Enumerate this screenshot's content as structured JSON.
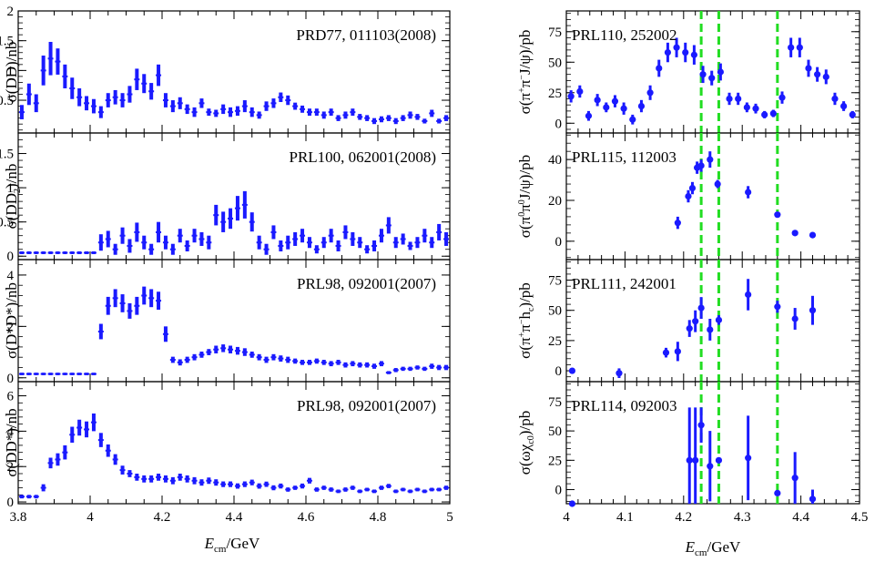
{
  "figure": {
    "left_xlabel": "E",
    "left_xlabel_sub": "cm",
    "left_xlabel_unit": "/GeV",
    "right_xlabel": "E",
    "right_xlabel_sub": "cm",
    "right_xlabel_unit": "/GeV",
    "marker_color": "#1a1aff",
    "vline_color": "#22dd22"
  },
  "chart_data": [
    {
      "type": "scatter",
      "column": "left",
      "row": 0,
      "annotation": "PRD77, 011103(2008)",
      "ylabel": "σ(DD)/nb",
      "xlim": [
        3.8,
        5.0
      ],
      "ylim": [
        -0.05,
        2.0
      ],
      "xticks": [
        3.8,
        4.0,
        4.2,
        4.4,
        4.6,
        4.8,
        5.0
      ],
      "yticks": [
        0.5,
        1,
        1.5,
        2
      ],
      "ytick_labels": [
        "0.5",
        "1",
        "1.5",
        "2"
      ],
      "show_xtick_labels": false,
      "error_style": "dense",
      "x": [
        3.81,
        3.83,
        3.85,
        3.87,
        3.89,
        3.91,
        3.93,
        3.95,
        3.97,
        3.99,
        4.01,
        4.03,
        4.05,
        4.07,
        4.09,
        4.11,
        4.13,
        4.15,
        4.17,
        4.19,
        4.21,
        4.23,
        4.25,
        4.27,
        4.29,
        4.31,
        4.33,
        4.35,
        4.37,
        4.39,
        4.41,
        4.43,
        4.45,
        4.47,
        4.49,
        4.51,
        4.53,
        4.55,
        4.57,
        4.59,
        4.61,
        4.63,
        4.65,
        4.67,
        4.69,
        4.71,
        4.73,
        4.75,
        4.77,
        4.79,
        4.81,
        4.83,
        4.85,
        4.87,
        4.89,
        4.91,
        4.93,
        4.95,
        4.97,
        4.99
      ],
      "y": [
        0.3,
        0.6,
        0.45,
        1.0,
        1.2,
        1.15,
        0.9,
        0.7,
        0.55,
        0.45,
        0.4,
        0.3,
        0.5,
        0.55,
        0.5,
        0.6,
        0.85,
        0.78,
        0.65,
        0.92,
        0.5,
        0.4,
        0.45,
        0.35,
        0.3,
        0.45,
        0.3,
        0.28,
        0.35,
        0.3,
        0.32,
        0.4,
        0.3,
        0.25,
        0.4,
        0.45,
        0.55,
        0.5,
        0.4,
        0.35,
        0.3,
        0.3,
        0.25,
        0.3,
        0.2,
        0.25,
        0.3,
        0.22,
        0.2,
        0.15,
        0.18,
        0.2,
        0.15,
        0.2,
        0.25,
        0.22,
        0.15,
        0.28,
        0.15,
        0.2
      ],
      "err": [
        0.12,
        0.18,
        0.15,
        0.25,
        0.28,
        0.22,
        0.2,
        0.18,
        0.15,
        0.12,
        0.12,
        0.1,
        0.12,
        0.12,
        0.12,
        0.14,
        0.18,
        0.16,
        0.14,
        0.18,
        0.12,
        0.1,
        0.1,
        0.08,
        0.08,
        0.08,
        0.06,
        0.06,
        0.08,
        0.08,
        0.08,
        0.1,
        0.08,
        0.06,
        0.08,
        0.08,
        0.08,
        0.08,
        0.06,
        0.06,
        0.06,
        0.06,
        0.06,
        0.06,
        0.05,
        0.06,
        0.06,
        0.05,
        0.05,
        0.05,
        0.05,
        0.05,
        0.05,
        0.05,
        0.06,
        0.05,
        0.04,
        0.06,
        0.04,
        0.05
      ]
    },
    {
      "type": "scatter",
      "column": "left",
      "row": 1,
      "annotation": "PRL100, 062001(2008)",
      "ylabel": "σ(DD₂)/nb",
      "xlim": [
        3.8,
        5.0
      ],
      "ylim": [
        -0.05,
        1.8
      ],
      "xticks": [
        3.8,
        4.0,
        4.2,
        4.4,
        4.6,
        4.8,
        5.0
      ],
      "yticks": [
        0,
        0.5,
        1,
        1.5
      ],
      "ytick_labels": [
        "0",
        "0.5",
        "1",
        "1.5"
      ],
      "show_xtick_labels": false,
      "error_style": "dense",
      "x": [
        3.81,
        3.83,
        3.85,
        3.87,
        3.89,
        3.91,
        3.93,
        3.95,
        3.97,
        3.99,
        4.01,
        4.03,
        4.05,
        4.07,
        4.09,
        4.11,
        4.13,
        4.15,
        4.17,
        4.19,
        4.21,
        4.23,
        4.25,
        4.27,
        4.29,
        4.31,
        4.33,
        4.35,
        4.37,
        4.39,
        4.41,
        4.43,
        4.45,
        4.47,
        4.49,
        4.51,
        4.53,
        4.55,
        4.57,
        4.59,
        4.61,
        4.63,
        4.65,
        4.67,
        4.69,
        4.71,
        4.73,
        4.75,
        4.77,
        4.79,
        4.81,
        4.83,
        4.85,
        4.87,
        4.89,
        4.91,
        4.93,
        4.95,
        4.97,
        4.99
      ],
      "y": [
        0.05,
        0.05,
        0.05,
        0.05,
        0.05,
        0.05,
        0.05,
        0.05,
        0.05,
        0.05,
        0.05,
        0.2,
        0.25,
        0.1,
        0.3,
        0.15,
        0.35,
        0.2,
        0.1,
        0.35,
        0.2,
        0.1,
        0.3,
        0.15,
        0.3,
        0.25,
        0.2,
        0.6,
        0.5,
        0.55,
        0.7,
        0.75,
        0.5,
        0.2,
        0.1,
        0.35,
        0.15,
        0.2,
        0.25,
        0.3,
        0.2,
        0.1,
        0.2,
        0.3,
        0.15,
        0.35,
        0.25,
        0.2,
        0.1,
        0.15,
        0.3,
        0.45,
        0.2,
        0.25,
        0.15,
        0.2,
        0.3,
        0.2,
        0.35,
        0.25
      ],
      "err": [
        0.02,
        0.02,
        0.02,
        0.02,
        0.02,
        0.02,
        0.02,
        0.02,
        0.02,
        0.02,
        0.02,
        0.12,
        0.12,
        0.08,
        0.12,
        0.1,
        0.14,
        0.1,
        0.08,
        0.15,
        0.1,
        0.08,
        0.1,
        0.08,
        0.1,
        0.1,
        0.1,
        0.15,
        0.15,
        0.15,
        0.18,
        0.2,
        0.14,
        0.1,
        0.08,
        0.1,
        0.08,
        0.1,
        0.1,
        0.1,
        0.08,
        0.06,
        0.08,
        0.1,
        0.08,
        0.1,
        0.1,
        0.08,
        0.06,
        0.08,
        0.1,
        0.12,
        0.08,
        0.08,
        0.06,
        0.08,
        0.1,
        0.08,
        0.12,
        0.1
      ]
    },
    {
      "type": "scatter",
      "column": "left",
      "row": 2,
      "annotation": "PRL98, 092001(2007)",
      "ylabel": "σ(D*D*)/nb",
      "xlim": [
        3.8,
        5.0
      ],
      "ylim": [
        -0.15,
        4.6
      ],
      "xticks": [
        3.8,
        4.0,
        4.2,
        4.4,
        4.6,
        4.8,
        5.0
      ],
      "yticks": [
        0,
        2,
        4
      ],
      "ytick_labels": [
        "0",
        "2",
        "4"
      ],
      "show_xtick_labels": false,
      "error_style": "dense",
      "x": [
        3.81,
        3.83,
        3.85,
        3.87,
        3.89,
        3.91,
        3.93,
        3.95,
        3.97,
        3.99,
        4.01,
        4.03,
        4.05,
        4.07,
        4.09,
        4.11,
        4.13,
        4.15,
        4.17,
        4.19,
        4.21,
        4.23,
        4.25,
        4.27,
        4.29,
        4.31,
        4.33,
        4.35,
        4.37,
        4.39,
        4.41,
        4.43,
        4.45,
        4.47,
        4.49,
        4.51,
        4.53,
        4.55,
        4.57,
        4.59,
        4.61,
        4.63,
        4.65,
        4.67,
        4.69,
        4.71,
        4.73,
        4.75,
        4.77,
        4.79,
        4.81,
        4.83,
        4.85,
        4.87,
        4.89,
        4.91,
        4.93,
        4.95,
        4.97,
        4.99
      ],
      "y": [
        0.15,
        0.15,
        0.15,
        0.15,
        0.15,
        0.15,
        0.15,
        0.15,
        0.15,
        0.15,
        0.15,
        1.8,
        2.8,
        3.1,
        2.9,
        2.6,
        2.8,
        3.2,
        3.1,
        3.0,
        1.7,
        0.7,
        0.6,
        0.7,
        0.8,
        0.9,
        1.0,
        1.1,
        1.15,
        1.1,
        1.05,
        1.0,
        0.9,
        0.8,
        0.7,
        0.8,
        0.75,
        0.7,
        0.65,
        0.6,
        0.6,
        0.65,
        0.6,
        0.55,
        0.6,
        0.5,
        0.55,
        0.5,
        0.5,
        0.45,
        0.55,
        0.2,
        0.3,
        0.35,
        0.35,
        0.4,
        0.35,
        0.45,
        0.4,
        0.4
      ],
      "err": [
        0.05,
        0.05,
        0.05,
        0.05,
        0.05,
        0.05,
        0.05,
        0.05,
        0.05,
        0.05,
        0.05,
        0.3,
        0.35,
        0.35,
        0.35,
        0.3,
        0.35,
        0.35,
        0.35,
        0.35,
        0.3,
        0.12,
        0.12,
        0.12,
        0.12,
        0.12,
        0.12,
        0.15,
        0.15,
        0.15,
        0.15,
        0.15,
        0.12,
        0.12,
        0.12,
        0.12,
        0.12,
        0.12,
        0.1,
        0.1,
        0.1,
        0.1,
        0.1,
        0.1,
        0.1,
        0.1,
        0.1,
        0.1,
        0.1,
        0.1,
        0.1,
        0.06,
        0.08,
        0.08,
        0.08,
        0.08,
        0.08,
        0.1,
        0.1,
        0.1
      ]
    },
    {
      "type": "scatter",
      "column": "left",
      "row": 3,
      "annotation": "PRL98, 092001(2007)",
      "ylabel": "σ(DD*)/nb",
      "xlim": [
        3.8,
        5.0
      ],
      "ylim": [
        -0.1,
        6.8
      ],
      "xticks": [
        3.8,
        4.0,
        4.2,
        4.4,
        4.6,
        4.8,
        5.0
      ],
      "yticks": [
        0,
        2,
        4,
        6
      ],
      "ytick_labels": [
        "0",
        "2",
        "4",
        "6"
      ],
      "xtick_labels": [
        "3.8",
        "4",
        "4.2",
        "4.4",
        "4.6",
        "4.8",
        "5"
      ],
      "show_xtick_labels": true,
      "error_style": "dense",
      "x": [
        3.81,
        3.83,
        3.85,
        3.87,
        3.89,
        3.91,
        3.93,
        3.95,
        3.97,
        3.99,
        4.01,
        4.03,
        4.05,
        4.07,
        4.09,
        4.11,
        4.13,
        4.15,
        4.17,
        4.19,
        4.21,
        4.23,
        4.25,
        4.27,
        4.29,
        4.31,
        4.33,
        4.35,
        4.37,
        4.39,
        4.41,
        4.43,
        4.45,
        4.47,
        4.49,
        4.51,
        4.53,
        4.55,
        4.57,
        4.59,
        4.61,
        4.63,
        4.65,
        4.67,
        4.69,
        4.71,
        4.73,
        4.75,
        4.77,
        4.79,
        4.81,
        4.83,
        4.85,
        4.87,
        4.89,
        4.91,
        4.93,
        4.95,
        4.97,
        4.99
      ],
      "y": [
        0.3,
        0.3,
        0.3,
        0.8,
        2.2,
        2.4,
        2.8,
        3.8,
        4.2,
        4.1,
        4.5,
        3.5,
        2.9,
        2.4,
        1.8,
        1.6,
        1.4,
        1.3,
        1.3,
        1.4,
        1.3,
        1.2,
        1.4,
        1.3,
        1.2,
        1.1,
        1.2,
        1.1,
        1.0,
        1.0,
        0.9,
        1.0,
        1.1,
        0.9,
        1.0,
        0.8,
        0.9,
        0.7,
        0.8,
        0.9,
        1.2,
        0.7,
        0.8,
        0.7,
        0.6,
        0.7,
        0.8,
        0.6,
        0.7,
        0.6,
        0.8,
        0.9,
        0.6,
        0.7,
        0.6,
        0.7,
        0.6,
        0.7,
        0.7,
        0.8
      ],
      "err": [
        0.1,
        0.1,
        0.1,
        0.2,
        0.3,
        0.35,
        0.4,
        0.45,
        0.45,
        0.45,
        0.5,
        0.4,
        0.35,
        0.3,
        0.25,
        0.2,
        0.2,
        0.2,
        0.2,
        0.2,
        0.2,
        0.2,
        0.2,
        0.2,
        0.2,
        0.18,
        0.18,
        0.18,
        0.16,
        0.16,
        0.15,
        0.16,
        0.16,
        0.15,
        0.15,
        0.14,
        0.14,
        0.12,
        0.12,
        0.14,
        0.16,
        0.12,
        0.12,
        0.12,
        0.1,
        0.12,
        0.12,
        0.1,
        0.1,
        0.1,
        0.12,
        0.12,
        0.1,
        0.1,
        0.1,
        0.1,
        0.1,
        0.1,
        0.1,
        0.12
      ]
    },
    {
      "type": "scatter",
      "column": "right",
      "row": 0,
      "annotation": "PRL110, 252002",
      "ylabel": "σ(π⁺π⁻J/ψ)/pb",
      "xlim": [
        4.0,
        4.5
      ],
      "ylim": [
        -8,
        92
      ],
      "xticks": [
        4.0,
        4.1,
        4.2,
        4.3,
        4.4,
        4.5
      ],
      "yticks": [
        0,
        25,
        50,
        75
      ],
      "ytick_labels": [
        "0",
        "25",
        "50",
        "75"
      ],
      "show_xtick_labels": false,
      "error_style": "cap",
      "x": [
        4.008,
        4.023,
        4.038,
        4.053,
        4.068,
        4.083,
        4.098,
        4.113,
        4.128,
        4.143,
        4.158,
        4.173,
        4.188,
        4.203,
        4.218,
        4.233,
        4.248,
        4.263,
        4.278,
        4.293,
        4.308,
        4.323,
        4.338,
        4.353,
        4.368,
        4.383,
        4.398,
        4.413,
        4.428,
        4.443,
        4.458,
        4.473,
        4.488
      ],
      "y": [
        22,
        26,
        6,
        19,
        13,
        18,
        12,
        3,
        14,
        25,
        45,
        58,
        62,
        58,
        56,
        40,
        37,
        42,
        20,
        20,
        13,
        12,
        7,
        8,
        21,
        62,
        62,
        45,
        40,
        38,
        20,
        14,
        7
      ],
      "err": [
        5,
        5,
        4,
        5,
        4,
        5,
        5,
        4,
        5,
        6,
        7,
        8,
        8,
        8,
        8,
        7,
        6,
        7,
        5,
        5,
        4,
        4,
        3,
        3,
        5,
        8,
        8,
        7,
        6,
        6,
        5,
        4,
        3
      ],
      "vlines": [
        4.23,
        4.26,
        4.36
      ]
    },
    {
      "type": "scatter",
      "column": "right",
      "row": 1,
      "annotation": "PRL115, 112003",
      "ylabel": "σ(π⁰π⁰J/ψ)/pb",
      "xlim": [
        4.0,
        4.5
      ],
      "ylim": [
        -9,
        53
      ],
      "xticks": [
        4.0,
        4.1,
        4.2,
        4.3,
        4.4,
        4.5
      ],
      "yticks": [
        0,
        20,
        40
      ],
      "ytick_labels": [
        "0",
        "20",
        "40"
      ],
      "show_xtick_labels": false,
      "error_style": "cap",
      "x": [
        4.19,
        4.208,
        4.215,
        4.223,
        4.23,
        4.245,
        4.258,
        4.31,
        4.36,
        4.39,
        4.42
      ],
      "y": [
        9,
        22,
        26,
        36,
        37,
        40,
        28,
        24,
        13,
        4,
        3
      ],
      "err": [
        3,
        3,
        3,
        3,
        3,
        4,
        2,
        3,
        1,
        1,
        1
      ],
      "vlines": [
        4.23,
        4.26,
        4.36
      ]
    },
    {
      "type": "scatter",
      "column": "right",
      "row": 2,
      "annotation": "PRL111, 242001",
      "ylabel": "σ(π⁺π⁻h_c)/pb",
      "xlim": [
        4.0,
        4.5
      ],
      "ylim": [
        -9,
        92
      ],
      "xticks": [
        4.0,
        4.1,
        4.2,
        4.3,
        4.4,
        4.5
      ],
      "yticks": [
        0,
        25,
        50,
        75
      ],
      "ytick_labels": [
        "0",
        "25",
        "50",
        "75"
      ],
      "show_xtick_labels": false,
      "error_style": "cap",
      "x": [
        4.01,
        4.09,
        4.17,
        4.19,
        4.21,
        4.22,
        4.23,
        4.245,
        4.26,
        4.31,
        4.36,
        4.39,
        4.42
      ],
      "y": [
        0,
        -2,
        15,
        16,
        35,
        41,
        52,
        34,
        42,
        63,
        53,
        43,
        50
      ],
      "err": [
        2,
        4,
        4,
        8,
        7,
        9,
        9,
        9,
        4,
        13,
        5,
        9,
        12
      ],
      "vlines": [
        4.23,
        4.26,
        4.36
      ]
    },
    {
      "type": "scatter",
      "column": "right",
      "row": 3,
      "annotation": "PRL114, 092003",
      "ylabel": "σ(ωχ_c0)/pb",
      "xlim": [
        4.0,
        4.5
      ],
      "ylim": [
        -12,
        92
      ],
      "xticks": [
        4.0,
        4.1,
        4.2,
        4.3,
        4.4,
        4.5
      ],
      "yticks": [
        0,
        25,
        50,
        75
      ],
      "ytick_labels": [
        "0",
        "25",
        "50",
        "75"
      ],
      "xtick_labels": [
        "4",
        "4.1",
        "4.2",
        "4.3",
        "4.4",
        "4.5"
      ],
      "show_xtick_labels": true,
      "error_style": "cap",
      "x": [
        4.01,
        4.21,
        4.22,
        4.23,
        4.245,
        4.26,
        4.31,
        4.36,
        4.39,
        4.42
      ],
      "y": [
        -12,
        25,
        25,
        55,
        20,
        25,
        27,
        -3,
        10,
        -8
      ],
      "err": [
        0,
        45,
        45,
        15,
        30,
        0,
        36,
        2,
        22,
        8
      ],
      "vlines": [
        4.23,
        4.26,
        4.36
      ]
    }
  ]
}
